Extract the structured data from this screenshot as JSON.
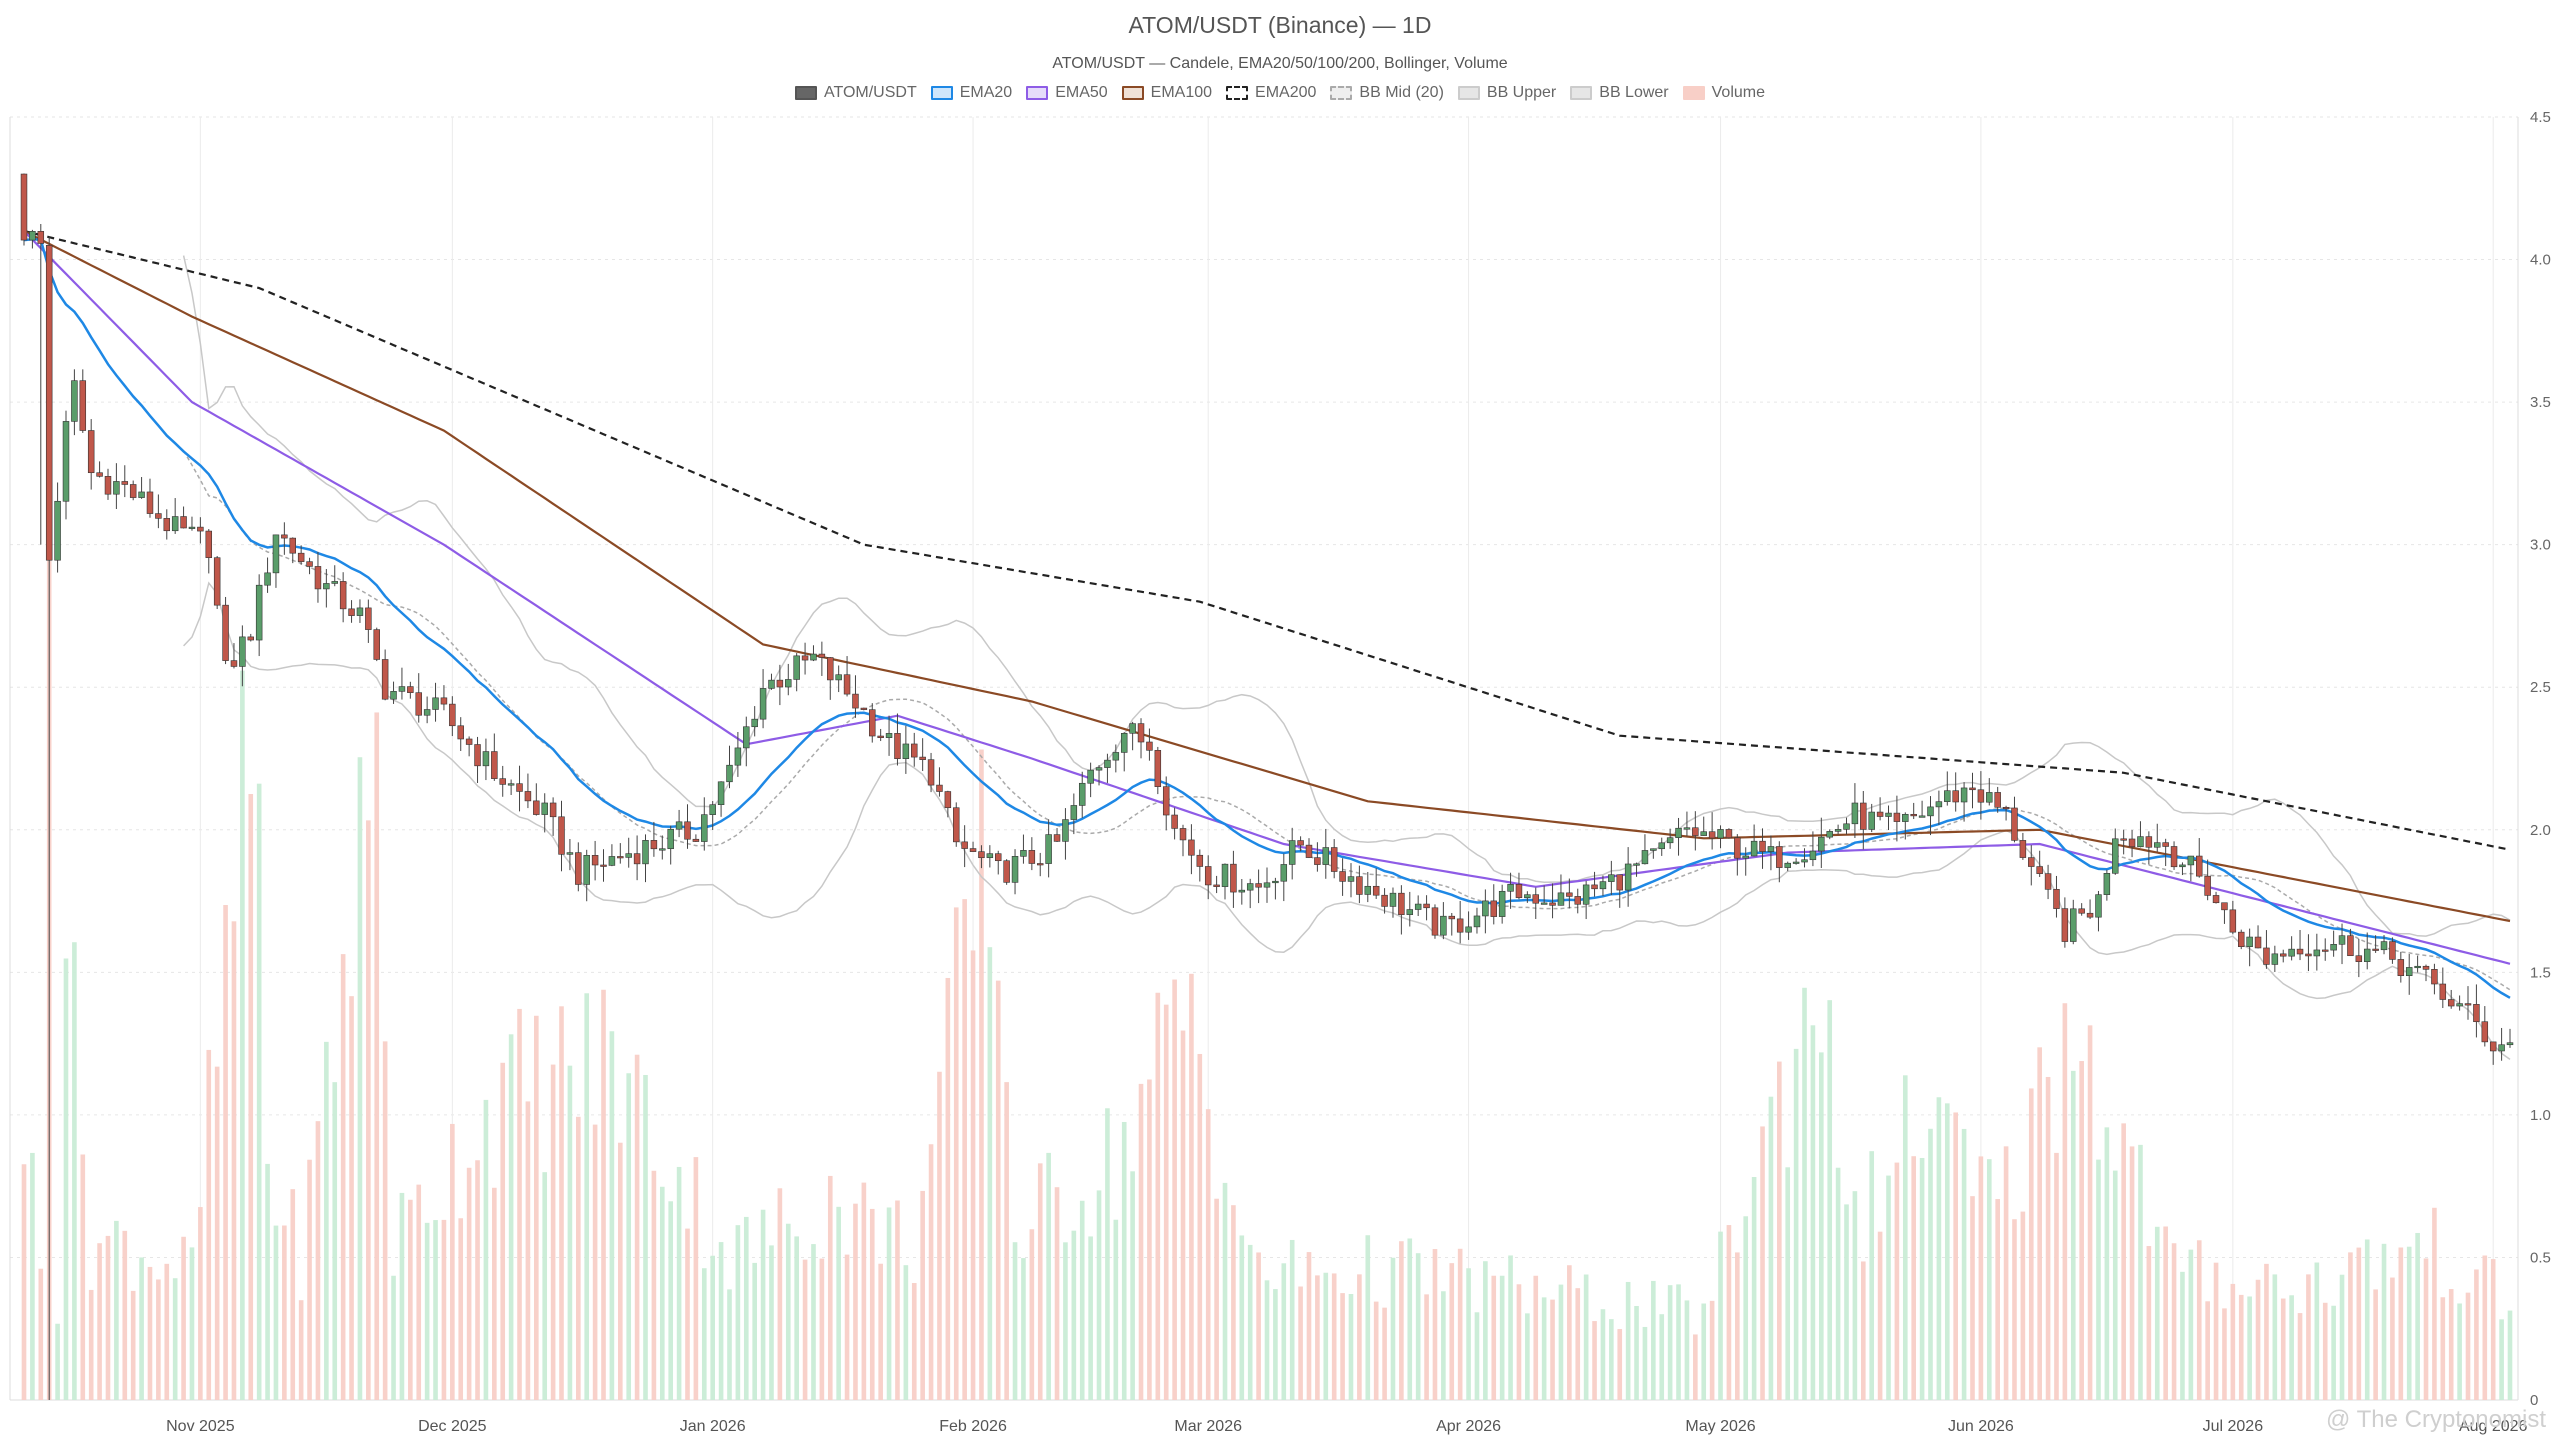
{
  "chart_data": {
    "type": "candlestick",
    "title": "ATOM/USDT (Binance) — 1D",
    "subtitle": "ATOM/USDT — Candele, EMA20/50/100/200, Bollinger, Volume",
    "legend": [
      {
        "name": "ATOM/USDT",
        "fill": "#666666",
        "stroke": "#555555",
        "dash": false
      },
      {
        "name": "EMA20",
        "fill": "#cfe6fb",
        "stroke": "#1e88e5",
        "dash": false
      },
      {
        "name": "EMA50",
        "fill": "#e6dcfa",
        "stroke": "#8e5ce6",
        "dash": false
      },
      {
        "name": "EMA100",
        "fill": "#f0e1d6",
        "stroke": "#8b4a25",
        "dash": false
      },
      {
        "name": "EMA200",
        "fill": "#ffffff",
        "stroke": "#222222",
        "dash": true
      },
      {
        "name": "BB Mid (20)",
        "fill": "#eeeeee",
        "stroke": "#aaaaaa",
        "dash": true
      },
      {
        "name": "BB Upper",
        "fill": "#e6e6e6",
        "stroke": "#cccccc",
        "dash": false
      },
      {
        "name": "BB Lower",
        "fill": "#e6e6e6",
        "stroke": "#cccccc",
        "dash": false
      },
      {
        "name": "Volume",
        "fill": "#f8cfc7",
        "stroke": "#f8cfc7",
        "dash": false
      }
    ],
    "x_ticks": [
      {
        "label": "Nov 2025",
        "day": 21
      },
      {
        "label": "Dec 2025",
        "day": 51
      },
      {
        "label": "Jan 2026",
        "day": 82
      },
      {
        "label": "Feb 2026",
        "day": 113
      },
      {
        "label": "Mar 2026",
        "day": 141
      },
      {
        "label": "Apr 2026",
        "day": 172
      },
      {
        "label": "May 2026",
        "day": 202
      },
      {
        "label": "Jun 2026",
        "day": 233
      },
      {
        "label": "Jul 2026",
        "day": 263
      },
      {
        "label": "Aug 2026",
        "day": 294
      }
    ],
    "y_ticks": [
      0,
      0.5,
      1.0,
      1.5,
      2.0,
      2.5,
      3.0,
      3.5,
      4.0,
      4.5
    ],
    "y_tick_labels": [
      "0",
      "0.5",
      "1.0",
      "1.5",
      "2.0",
      "2.5",
      "3.0",
      "3.5",
      "4.0",
      "4.5"
    ],
    "ylim": [
      0,
      4.5
    ],
    "grid": true,
    "legend_position": "top-center",
    "colors": {
      "up": "#5a9d6a",
      "down": "#c0574a",
      "ema20": "#1e88e5",
      "ema50": "#8e5ce6",
      "ema100": "#8b4a25",
      "ema200": "#222222",
      "bb": "#c8c8c8",
      "bb_mid": "#aaaaaa",
      "vol_up": "#c9ecd6",
      "vol_down": "#f8cfc7"
    },
    "close_anchors": [
      [
        0,
        4.1
      ],
      [
        2,
        4.05
      ],
      [
        3,
        2.95
      ],
      [
        5,
        3.4
      ],
      [
        6,
        3.55
      ],
      [
        8,
        3.25
      ],
      [
        12,
        3.2
      ],
      [
        18,
        3.05
      ],
      [
        22,
        3.0
      ],
      [
        24,
        2.55
      ],
      [
        27,
        2.7
      ],
      [
        30,
        3.05
      ],
      [
        36,
        2.85
      ],
      [
        40,
        2.75
      ],
      [
        43,
        2.5
      ],
      [
        50,
        2.4
      ],
      [
        56,
        2.2
      ],
      [
        62,
        2.05
      ],
      [
        66,
        1.85
      ],
      [
        72,
        1.92
      ],
      [
        80,
        2.0
      ],
      [
        84,
        2.2
      ],
      [
        88,
        2.5
      ],
      [
        94,
        2.6
      ],
      [
        99,
        2.45
      ],
      [
        103,
        2.3
      ],
      [
        108,
        2.2
      ],
      [
        111,
        1.95
      ],
      [
        116,
        1.85
      ],
      [
        120,
        1.9
      ],
      [
        123,
        1.95
      ],
      [
        127,
        2.2
      ],
      [
        131,
        2.35
      ],
      [
        134,
        2.3
      ],
      [
        137,
        2.0
      ],
      [
        141,
        1.85
      ],
      [
        147,
        1.8
      ],
      [
        152,
        1.95
      ],
      [
        157,
        1.85
      ],
      [
        163,
        1.75
      ],
      [
        169,
        1.65
      ],
      [
        174,
        1.72
      ],
      [
        178,
        1.78
      ],
      [
        184,
        1.75
      ],
      [
        189,
        1.82
      ],
      [
        194,
        1.9
      ],
      [
        198,
        2.0
      ],
      [
        203,
        1.95
      ],
      [
        208,
        1.9
      ],
      [
        213,
        1.95
      ],
      [
        218,
        2.05
      ],
      [
        223,
        2.0
      ],
      [
        228,
        2.1
      ],
      [
        232,
        2.15
      ],
      [
        236,
        2.05
      ],
      [
        240,
        1.8
      ],
      [
        243,
        1.65
      ],
      [
        247,
        1.75
      ],
      [
        249,
        2.0
      ],
      [
        255,
        1.95
      ],
      [
        260,
        1.8
      ],
      [
        263,
        1.65
      ],
      [
        267,
        1.55
      ],
      [
        271,
        1.6
      ],
      [
        276,
        1.6
      ],
      [
        282,
        1.55
      ],
      [
        287,
        1.45
      ],
      [
        291,
        1.35
      ],
      [
        294,
        1.25
      ],
      [
        296,
        1.25
      ]
    ],
    "ema200_anchors": [
      [
        0,
        4.1
      ],
      [
        28,
        3.9
      ],
      [
        60,
        3.5
      ],
      [
        100,
        3.0
      ],
      [
        140,
        2.8
      ],
      [
        190,
        2.33
      ],
      [
        250,
        2.2
      ],
      [
        296,
        1.93
      ]
    ],
    "ema100_anchors": [
      [
        0,
        4.1
      ],
      [
        20,
        3.8
      ],
      [
        50,
        3.4
      ],
      [
        88,
        2.65
      ],
      [
        120,
        2.45
      ],
      [
        160,
        2.1
      ],
      [
        200,
        1.97
      ],
      [
        240,
        2.0
      ],
      [
        296,
        1.68
      ]
    ],
    "ema50_anchors": [
      [
        0,
        4.1
      ],
      [
        20,
        3.5
      ],
      [
        50,
        3.0
      ],
      [
        86,
        2.3
      ],
      [
        104,
        2.4
      ],
      [
        120,
        2.25
      ],
      [
        150,
        1.95
      ],
      [
        180,
        1.8
      ],
      [
        210,
        1.92
      ],
      [
        240,
        1.95
      ],
      [
        296,
        1.53
      ]
    ],
    "volume_anchors": [
      [
        0,
        1.0
      ],
      [
        2,
        0.45
      ],
      [
        4,
        0.35
      ],
      [
        5,
        1.8
      ],
      [
        6,
        1.25
      ],
      [
        8,
        0.55
      ],
      [
        12,
        0.55
      ],
      [
        20,
        0.45
      ],
      [
        27,
        2.25
      ],
      [
        28,
        2.1
      ],
      [
        29,
        0.8
      ],
      [
        33,
        0.5
      ],
      [
        42,
        2.3
      ],
      [
        44,
        0.55
      ],
      [
        56,
        1.05
      ],
      [
        70,
        1.2
      ],
      [
        84,
        0.5
      ],
      [
        96,
        0.7
      ],
      [
        106,
        0.55
      ],
      [
        115,
        2.0
      ],
      [
        118,
        0.6
      ],
      [
        130,
        0.85
      ],
      [
        138,
        1.35
      ],
      [
        139,
        1.35
      ],
      [
        146,
        0.45
      ],
      [
        165,
        0.45
      ],
      [
        200,
        0.3
      ],
      [
        213,
        1.4
      ],
      [
        215,
        1.55
      ],
      [
        217,
        0.55
      ],
      [
        226,
        1.0
      ],
      [
        235,
        0.65
      ],
      [
        244,
        1.35
      ],
      [
        256,
        0.45
      ],
      [
        272,
        0.4
      ],
      [
        286,
        0.55
      ],
      [
        290,
        0.45
      ],
      [
        296,
        0.35
      ]
    ],
    "watermark": "@ The Cryptonomist"
  }
}
